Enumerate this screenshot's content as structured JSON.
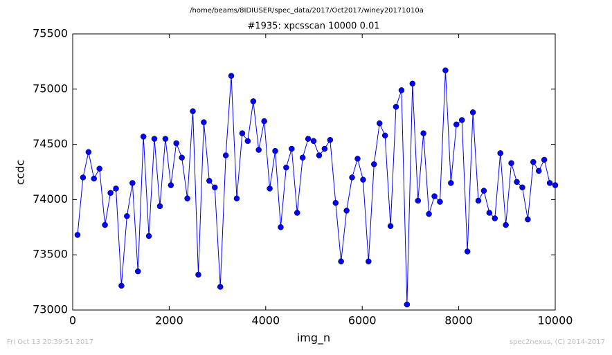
{
  "chart_data": {
    "type": "line",
    "suptitle": "/home/beams/8IDIUSER/spec_data/2017/Oct2017/winey20171010a",
    "title": "#1935: xpcsscan 10000 0.01",
    "x_label": "img_n",
    "y_label": "ccdc",
    "footer_left": "Fri Oct 13 20:39:51 2017",
    "footer_right": "spec2nexus, (C) 2014-2017",
    "x": [
      100,
      214,
      328,
      441,
      555,
      669,
      783,
      897,
      1010,
      1124,
      1238,
      1352,
      1466,
      1579,
      1693,
      1807,
      1921,
      2035,
      2148,
      2262,
      2376,
      2490,
      2604,
      2717,
      2831,
      2945,
      3059,
      3173,
      3286,
      3400,
      3514,
      3628,
      3742,
      3855,
      3969,
      4083,
      4197,
      4311,
      4424,
      4538,
      4652,
      4766,
      4880,
      4993,
      5107,
      5221,
      5335,
      5449,
      5562,
      5676,
      5790,
      5904,
      6018,
      6131,
      6245,
      6359,
      6473,
      6587,
      6700,
      6814,
      6928,
      7042,
      7156,
      7269,
      7383,
      7497,
      7611,
      7725,
      7838,
      7952,
      8066,
      8180,
      8294,
      8407,
      8521,
      8635,
      8749,
      8863,
      8976,
      9090,
      9204,
      9318,
      9432,
      9545,
      9659,
      9773,
      9887,
      10000
    ],
    "series": [
      {
        "name": "ccdc",
        "color": "#0000ff",
        "marker": "circle",
        "values": [
          73680,
          74200,
          74430,
          74190,
          74280,
          73770,
          74060,
          74100,
          73220,
          73850,
          74150,
          73350,
          74570,
          73670,
          74550,
          73940,
          74550,
          74130,
          74510,
          74380,
          74010,
          74800,
          73320,
          74700,
          74170,
          74110,
          73210,
          74400,
          75120,
          74010,
          74600,
          74530,
          74890,
          74450,
          74710,
          74100,
          74440,
          73750,
          74290,
          74460,
          73880,
          74380,
          74550,
          74530,
          74400,
          74460,
          74540,
          73970,
          73440,
          73900,
          74200,
          74370,
          74180,
          73440,
          74320,
          74690,
          74580,
          73760,
          74840,
          74990,
          73050,
          75050,
          73990,
          74600,
          73870,
          74030,
          73980,
          75170,
          74150,
          74680,
          74720,
          73530,
          74790,
          73990,
          74080,
          73880,
          73830,
          74420,
          73770,
          74330,
          74160,
          74110,
          73820,
          74340,
          74260,
          74360,
          74150,
          74130
        ]
      }
    ],
    "xlim": [
      0,
      10000
    ],
    "xticks": [
      0,
      2000,
      4000,
      6000,
      8000,
      10000
    ],
    "ylim": [
      73000,
      75500
    ],
    "yticks": [
      73000,
      73500,
      74000,
      74500,
      75000,
      75500
    ],
    "grid": false
  }
}
